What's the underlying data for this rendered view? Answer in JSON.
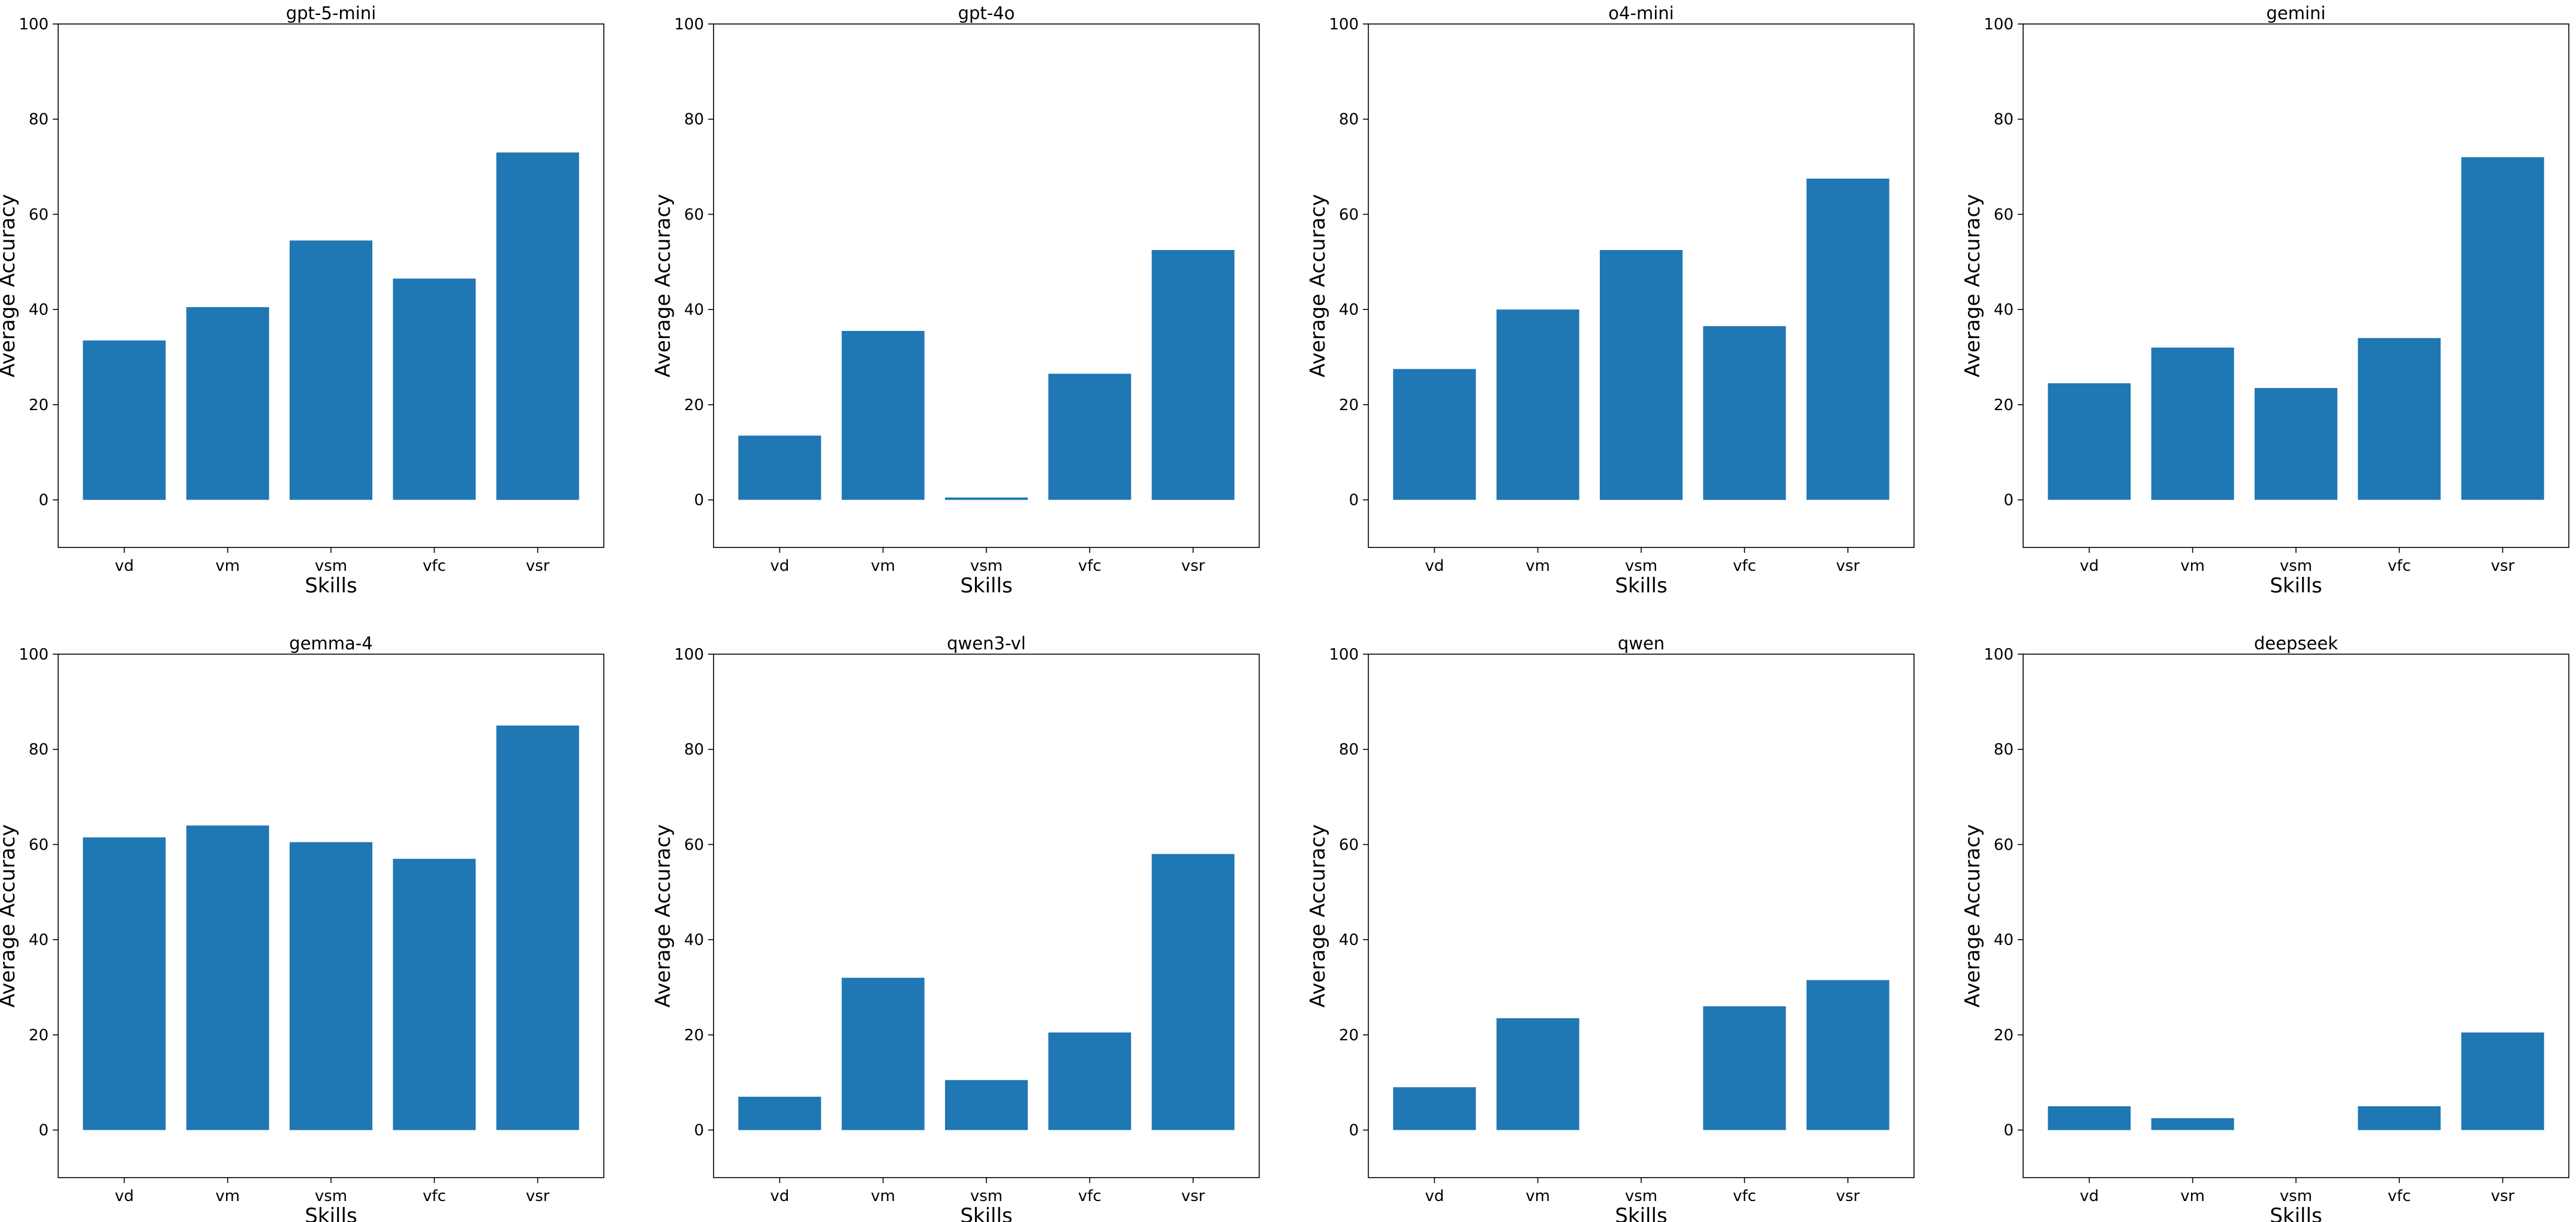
{
  "chart_data": [
    {
      "type": "bar",
      "title": "gpt-5-mini",
      "xlabel": "Skills",
      "ylabel": "Average Accuracy",
      "categories": [
        "vd",
        "vm",
        "vsm",
        "vfc",
        "vsr"
      ],
      "values": [
        33.5,
        40.5,
        54.5,
        46.5,
        73.0
      ],
      "ylim": [
        -10,
        100
      ],
      "yticks": [
        0,
        20,
        40,
        60,
        80,
        100
      ],
      "color": "#1f77b4",
      "grid": false,
      "legend": "none"
    },
    {
      "type": "bar",
      "title": "gpt-4o",
      "xlabel": "Skills",
      "ylabel": "Average Accuracy",
      "categories": [
        "vd",
        "vm",
        "vsm",
        "vfc",
        "vsr"
      ],
      "values": [
        13.5,
        35.5,
        0.5,
        26.5,
        52.5
      ],
      "ylim": [
        -10,
        100
      ],
      "yticks": [
        0,
        20,
        40,
        60,
        80,
        100
      ],
      "color": "#1f77b4",
      "grid": false,
      "legend": "none"
    },
    {
      "type": "bar",
      "title": "o4-mini",
      "xlabel": "Skills",
      "ylabel": "Average Accuracy",
      "categories": [
        "vd",
        "vm",
        "vsm",
        "vfc",
        "vsr"
      ],
      "values": [
        27.5,
        40.0,
        52.5,
        36.5,
        67.5
      ],
      "ylim": [
        -10,
        100
      ],
      "yticks": [
        0,
        20,
        40,
        60,
        80,
        100
      ],
      "color": "#1f77b4",
      "grid": false,
      "legend": "none"
    },
    {
      "type": "bar",
      "title": "gemini",
      "xlabel": "Skills",
      "ylabel": "Average Accuracy",
      "categories": [
        "vd",
        "vm",
        "vsm",
        "vfc",
        "vsr"
      ],
      "values": [
        24.5,
        32.0,
        23.5,
        34.0,
        72.0
      ],
      "ylim": [
        -10,
        100
      ],
      "yticks": [
        0,
        20,
        40,
        60,
        80,
        100
      ],
      "color": "#1f77b4",
      "grid": false,
      "legend": "none"
    },
    {
      "type": "bar",
      "title": "gemma-4",
      "xlabel": "Skills",
      "ylabel": "Average Accuracy",
      "categories": [
        "vd",
        "vm",
        "vsm",
        "vfc",
        "vsr"
      ],
      "values": [
        61.5,
        64.0,
        60.5,
        57.0,
        85.0
      ],
      "ylim": [
        -10,
        100
      ],
      "yticks": [
        0,
        20,
        40,
        60,
        80,
        100
      ],
      "color": "#1f77b4",
      "grid": false,
      "legend": "none"
    },
    {
      "type": "bar",
      "title": "qwen3-vl",
      "xlabel": "Skills",
      "ylabel": "Average Accuracy",
      "categories": [
        "vd",
        "vm",
        "vsm",
        "vfc",
        "vsr"
      ],
      "values": [
        7.0,
        32.0,
        10.5,
        20.5,
        58.0
      ],
      "ylim": [
        -10,
        100
      ],
      "yticks": [
        0,
        20,
        40,
        60,
        80,
        100
      ],
      "color": "#1f77b4",
      "grid": false,
      "legend": "none"
    },
    {
      "type": "bar",
      "title": "qwen",
      "xlabel": "Skills",
      "ylabel": "Average Accuracy",
      "categories": [
        "vd",
        "vm",
        "vsm",
        "vfc",
        "vsr"
      ],
      "values": [
        9.0,
        23.5,
        0.0,
        26.0,
        31.5
      ],
      "ylim": [
        -10,
        100
      ],
      "yticks": [
        0,
        20,
        40,
        60,
        80,
        100
      ],
      "color": "#1f77b4",
      "grid": false,
      "legend": "none"
    },
    {
      "type": "bar",
      "title": "deepseek",
      "xlabel": "Skills",
      "ylabel": "Average Accuracy",
      "categories": [
        "vd",
        "vm",
        "vsm",
        "vfc",
        "vsr"
      ],
      "values": [
        5.0,
        2.5,
        0.0,
        5.0,
        20.5
      ],
      "ylim": [
        -10,
        100
      ],
      "yticks": [
        0,
        20,
        40,
        60,
        80,
        100
      ],
      "color": "#1f77b4",
      "grid": false,
      "legend": "none"
    }
  ]
}
